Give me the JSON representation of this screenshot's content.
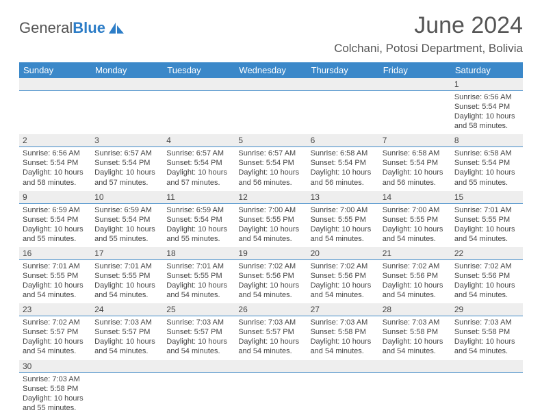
{
  "logo": {
    "text1": "General",
    "text2": "Blue",
    "mark_fill": "#2d7dc7"
  },
  "title": "June 2024",
  "location": "Colchani, Potosi Department, Bolivia",
  "colors": {
    "header_bg": "#3b88c9",
    "daynum_bg": "#eeeeee",
    "text": "#444444"
  },
  "day_names": [
    "Sunday",
    "Monday",
    "Tuesday",
    "Wednesday",
    "Thursday",
    "Friday",
    "Saturday"
  ],
  "weeks": [
    {
      "nums": [
        "",
        "",
        "",
        "",
        "",
        "",
        "1"
      ],
      "cells": [
        null,
        null,
        null,
        null,
        null,
        null,
        {
          "sunrise": "6:56 AM",
          "sunset": "5:54 PM",
          "daylight": "10 hours and 58 minutes."
        }
      ]
    },
    {
      "nums": [
        "2",
        "3",
        "4",
        "5",
        "6",
        "7",
        "8"
      ],
      "cells": [
        {
          "sunrise": "6:56 AM",
          "sunset": "5:54 PM",
          "daylight": "10 hours and 58 minutes."
        },
        {
          "sunrise": "6:57 AM",
          "sunset": "5:54 PM",
          "daylight": "10 hours and 57 minutes."
        },
        {
          "sunrise": "6:57 AM",
          "sunset": "5:54 PM",
          "daylight": "10 hours and 57 minutes."
        },
        {
          "sunrise": "6:57 AM",
          "sunset": "5:54 PM",
          "daylight": "10 hours and 56 minutes."
        },
        {
          "sunrise": "6:58 AM",
          "sunset": "5:54 PM",
          "daylight": "10 hours and 56 minutes."
        },
        {
          "sunrise": "6:58 AM",
          "sunset": "5:54 PM",
          "daylight": "10 hours and 56 minutes."
        },
        {
          "sunrise": "6:58 AM",
          "sunset": "5:54 PM",
          "daylight": "10 hours and 55 minutes."
        }
      ]
    },
    {
      "nums": [
        "9",
        "10",
        "11",
        "12",
        "13",
        "14",
        "15"
      ],
      "cells": [
        {
          "sunrise": "6:59 AM",
          "sunset": "5:54 PM",
          "daylight": "10 hours and 55 minutes."
        },
        {
          "sunrise": "6:59 AM",
          "sunset": "5:54 PM",
          "daylight": "10 hours and 55 minutes."
        },
        {
          "sunrise": "6:59 AM",
          "sunset": "5:54 PM",
          "daylight": "10 hours and 55 minutes."
        },
        {
          "sunrise": "7:00 AM",
          "sunset": "5:55 PM",
          "daylight": "10 hours and 54 minutes."
        },
        {
          "sunrise": "7:00 AM",
          "sunset": "5:55 PM",
          "daylight": "10 hours and 54 minutes."
        },
        {
          "sunrise": "7:00 AM",
          "sunset": "5:55 PM",
          "daylight": "10 hours and 54 minutes."
        },
        {
          "sunrise": "7:01 AM",
          "sunset": "5:55 PM",
          "daylight": "10 hours and 54 minutes."
        }
      ]
    },
    {
      "nums": [
        "16",
        "17",
        "18",
        "19",
        "20",
        "21",
        "22"
      ],
      "cells": [
        {
          "sunrise": "7:01 AM",
          "sunset": "5:55 PM",
          "daylight": "10 hours and 54 minutes."
        },
        {
          "sunrise": "7:01 AM",
          "sunset": "5:55 PM",
          "daylight": "10 hours and 54 minutes."
        },
        {
          "sunrise": "7:01 AM",
          "sunset": "5:55 PM",
          "daylight": "10 hours and 54 minutes."
        },
        {
          "sunrise": "7:02 AM",
          "sunset": "5:56 PM",
          "daylight": "10 hours and 54 minutes."
        },
        {
          "sunrise": "7:02 AM",
          "sunset": "5:56 PM",
          "daylight": "10 hours and 54 minutes."
        },
        {
          "sunrise": "7:02 AM",
          "sunset": "5:56 PM",
          "daylight": "10 hours and 54 minutes."
        },
        {
          "sunrise": "7:02 AM",
          "sunset": "5:56 PM",
          "daylight": "10 hours and 54 minutes."
        }
      ]
    },
    {
      "nums": [
        "23",
        "24",
        "25",
        "26",
        "27",
        "28",
        "29"
      ],
      "cells": [
        {
          "sunrise": "7:02 AM",
          "sunset": "5:57 PM",
          "daylight": "10 hours and 54 minutes."
        },
        {
          "sunrise": "7:03 AM",
          "sunset": "5:57 PM",
          "daylight": "10 hours and 54 minutes."
        },
        {
          "sunrise": "7:03 AM",
          "sunset": "5:57 PM",
          "daylight": "10 hours and 54 minutes."
        },
        {
          "sunrise": "7:03 AM",
          "sunset": "5:57 PM",
          "daylight": "10 hours and 54 minutes."
        },
        {
          "sunrise": "7:03 AM",
          "sunset": "5:58 PM",
          "daylight": "10 hours and 54 minutes."
        },
        {
          "sunrise": "7:03 AM",
          "sunset": "5:58 PM",
          "daylight": "10 hours and 54 minutes."
        },
        {
          "sunrise": "7:03 AM",
          "sunset": "5:58 PM",
          "daylight": "10 hours and 54 minutes."
        }
      ]
    },
    {
      "nums": [
        "30",
        "",
        "",
        "",
        "",
        "",
        ""
      ],
      "cells": [
        {
          "sunrise": "7:03 AM",
          "sunset": "5:58 PM",
          "daylight": "10 hours and 55 minutes."
        },
        null,
        null,
        null,
        null,
        null,
        null
      ]
    }
  ],
  "labels": {
    "sunrise": "Sunrise: ",
    "sunset": "Sunset: ",
    "daylight": "Daylight: "
  }
}
